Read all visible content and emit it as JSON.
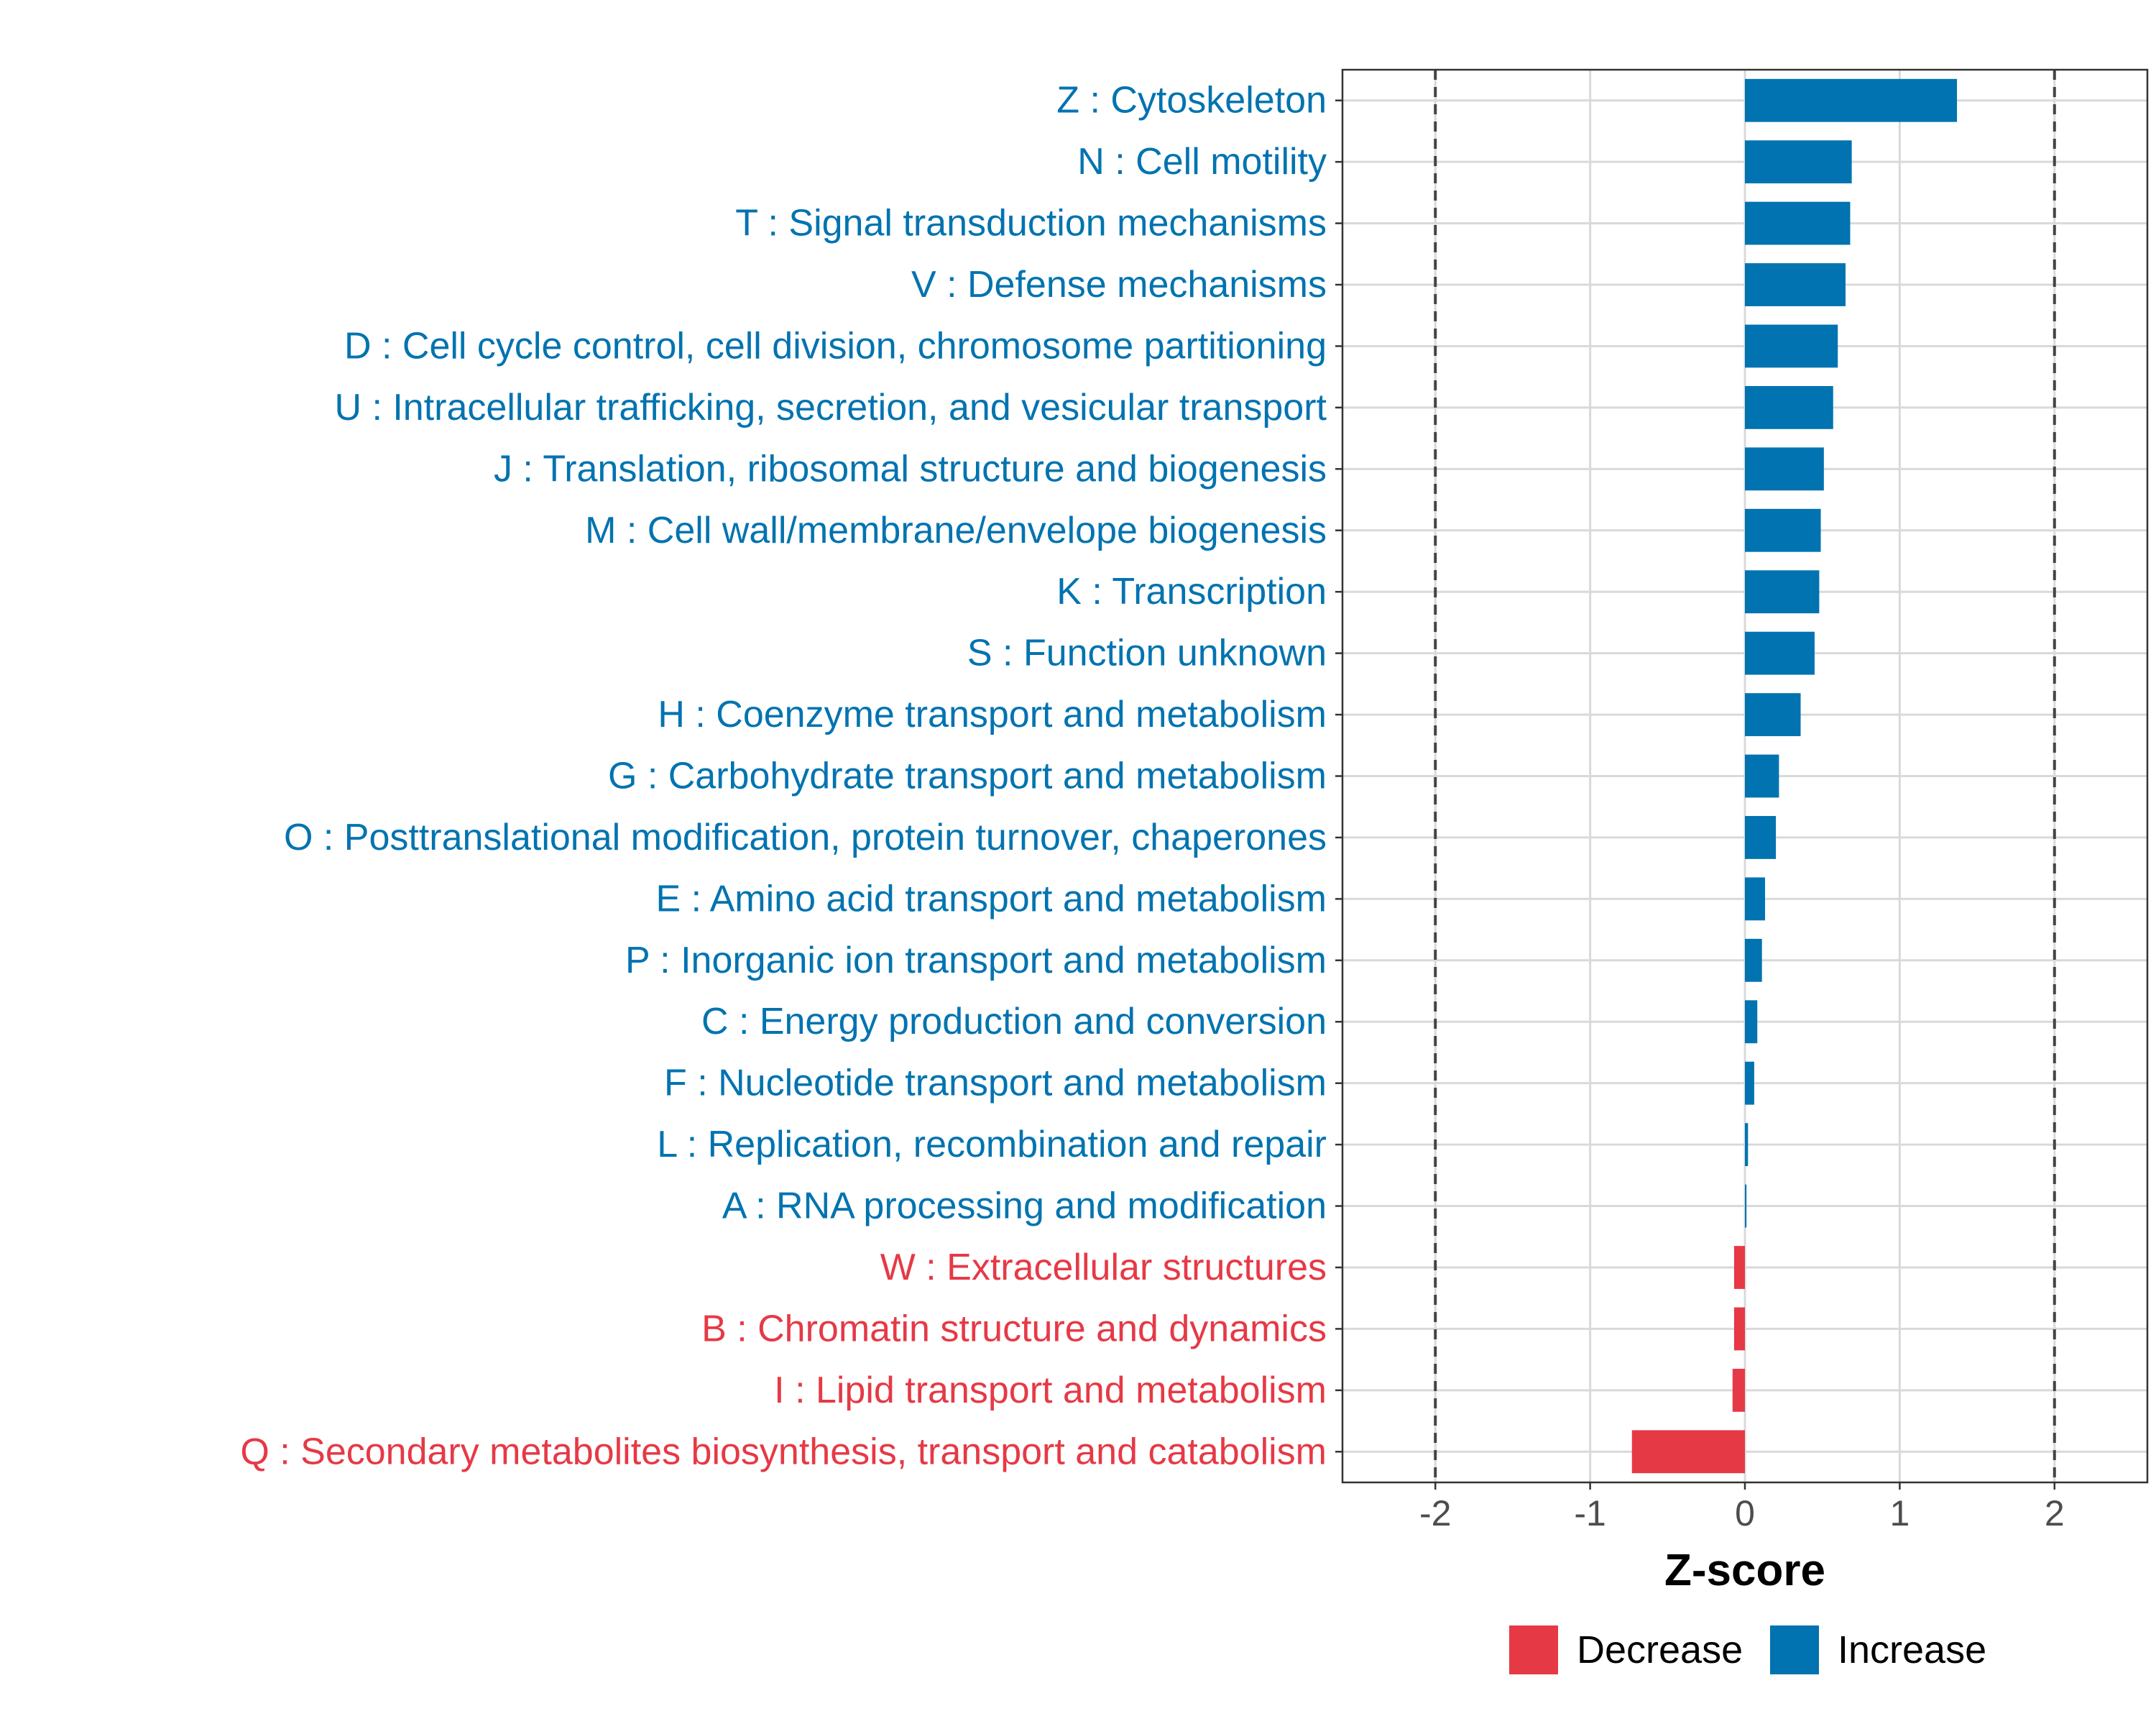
{
  "chart_data": {
    "type": "bar",
    "orientation": "horizontal",
    "title": "",
    "xlabel": "Z-score",
    "ylabel": "",
    "xlim": [
      -2.6,
      2.6
    ],
    "x_ticks": [
      -2,
      -1,
      0,
      1,
      2
    ],
    "x_tick_labels": [
      "-2",
      "-1",
      "0",
      "1",
      "2"
    ],
    "reference_lines": [
      -2,
      2
    ],
    "grid": true,
    "colors": {
      "Increase": "#0073B0",
      "Decrease": "#E63946"
    },
    "legend": {
      "position": "bottom",
      "entries": [
        "Decrease",
        "Increase"
      ]
    },
    "categories": [
      "Z : Cytoskeleton",
      "N : Cell motility",
      "T : Signal transduction mechanisms",
      "V : Defense mechanisms",
      "D : Cell cycle control, cell division, chromosome partitioning",
      "U : Intracellular trafficking, secretion, and vesicular transport",
      "J : Translation, ribosomal structure and biogenesis",
      "M : Cell wall/membrane/envelope biogenesis",
      "K : Transcription",
      "S : Function unknown",
      "H : Coenzyme transport and metabolism",
      "G : Carbohydrate transport and metabolism",
      "O : Posttranslational modification, protein turnover, chaperones",
      "E : Amino acid transport and metabolism",
      "P : Inorganic ion transport and metabolism",
      "C : Energy production and conversion",
      "F : Nucleotide transport and metabolism",
      "L : Replication, recombination and repair",
      "A : RNA processing and modification",
      "W : Extracellular structures",
      "B : Chromatin structure and dynamics",
      "I : Lipid transport and metabolism",
      "Q : Secondary metabolites biosynthesis, transport and catabolism"
    ],
    "values": [
      1.37,
      0.69,
      0.68,
      0.65,
      0.6,
      0.57,
      0.51,
      0.49,
      0.48,
      0.45,
      0.36,
      0.22,
      0.2,
      0.13,
      0.11,
      0.08,
      0.06,
      0.02,
      0.01,
      -0.07,
      -0.07,
      -0.08,
      -0.73
    ],
    "directions": [
      "Increase",
      "Increase",
      "Increase",
      "Increase",
      "Increase",
      "Increase",
      "Increase",
      "Increase",
      "Increase",
      "Increase",
      "Increase",
      "Increase",
      "Increase",
      "Increase",
      "Increase",
      "Increase",
      "Increase",
      "Increase",
      "Increase",
      "Decrease",
      "Decrease",
      "Decrease",
      "Decrease"
    ]
  }
}
